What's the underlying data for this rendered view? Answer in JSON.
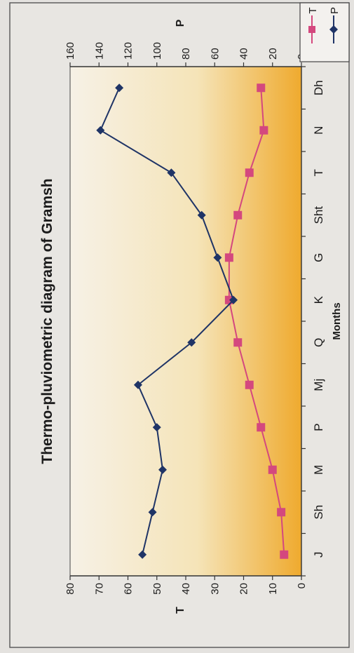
{
  "chart_data": {
    "type": "line",
    "title": "Thermo-pluviometric diagram of Gramsh",
    "xlabel": "Months",
    "ylabel_left": "T",
    "ylabel_right": "P",
    "categories": [
      "J",
      "Sh",
      "M",
      "P",
      "Mj",
      "Q",
      "K",
      "G",
      "Sht",
      "T",
      "N",
      "Dh"
    ],
    "y_left_range": [
      0,
      80
    ],
    "y_left_ticks": [
      "0",
      "10",
      "20",
      "30",
      "40",
      "50",
      "60",
      "70",
      "80"
    ],
    "y_right_range": [
      0,
      160
    ],
    "y_right_ticks": [
      "0",
      "20",
      "40",
      "60",
      "80",
      "100",
      "120",
      "140",
      "160"
    ],
    "grid": false,
    "legend_position": "top-right",
    "series": [
      {
        "name": "T",
        "axis": "left",
        "color": "#d4487e",
        "marker": "square",
        "values": [
          6,
          7,
          10,
          14,
          18,
          22,
          25,
          25,
          22,
          18,
          13,
          14
        ]
      },
      {
        "name": "P",
        "axis": "right",
        "color": "#1f3466",
        "marker": "diamond",
        "values": [
          110,
          103,
          96,
          100,
          113,
          76,
          47,
          58,
          69,
          90,
          139,
          126
        ]
      }
    ]
  }
}
